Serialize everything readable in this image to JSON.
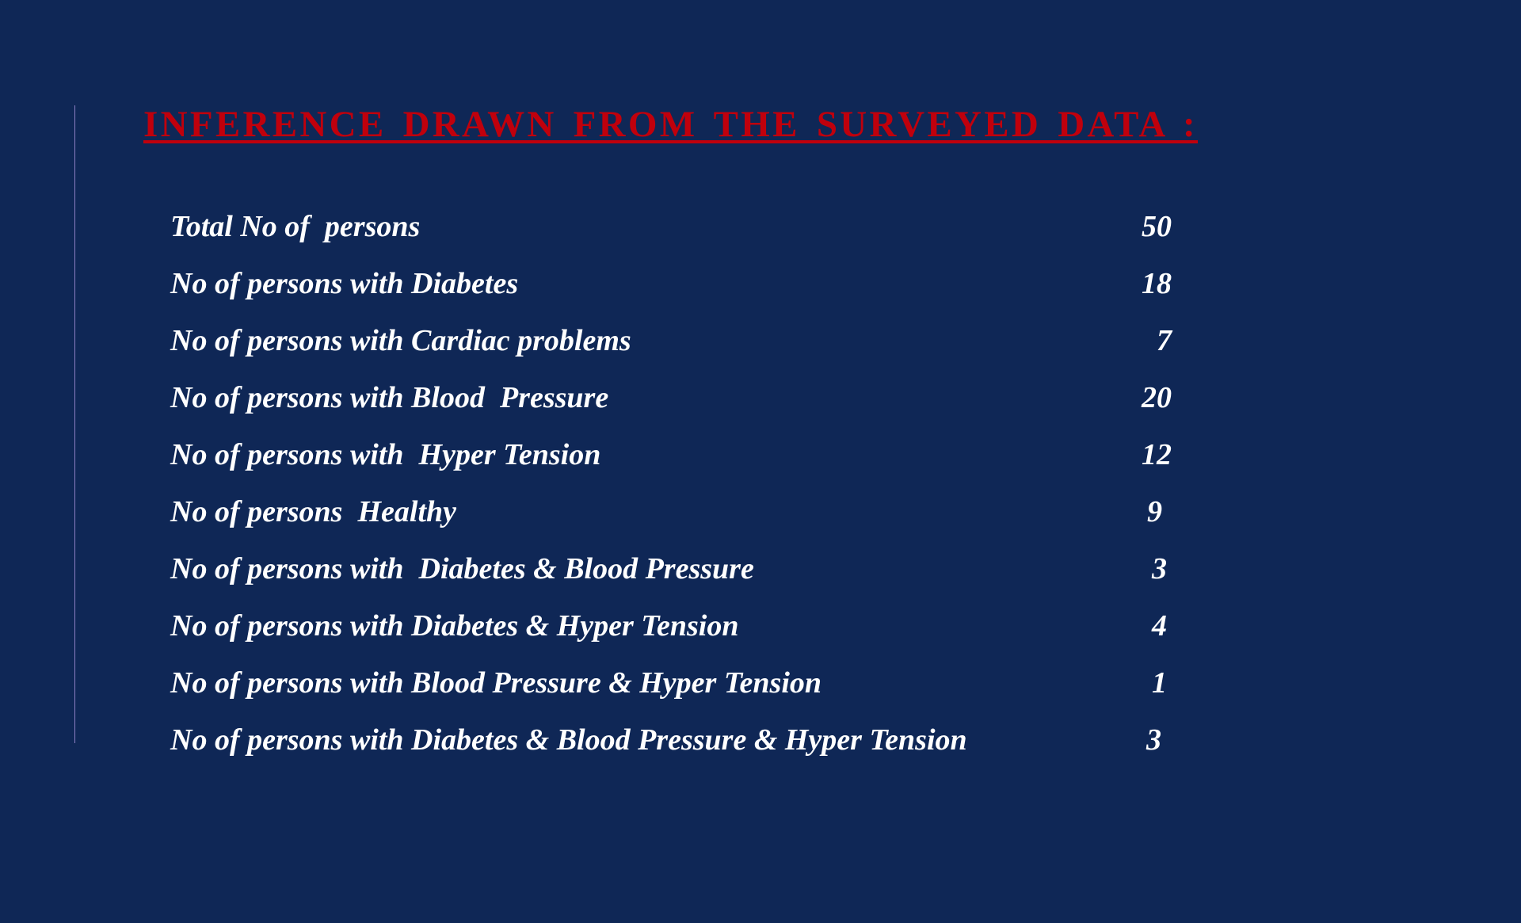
{
  "slide": {
    "title": "INFERENCE  DRAWN  FROM THE SURVEYED  DATA :",
    "title_color": "#c0000c",
    "background_color": "#0f2756",
    "accent_line_color": "#8d80c4"
  },
  "stats": [
    {
      "label": "Total No of  persons",
      "value": "50"
    },
    {
      "label": "No of persons with Diabetes",
      "value": "18"
    },
    {
      "label": "No of persons with Cardiac problems",
      "value": "7"
    },
    {
      "label": "No of persons with Blood  Pressure",
      "value": "20"
    },
    {
      "label": "No of persons with  Hyper Tension",
      "value": "12"
    },
    {
      "label": "No of persons  Healthy",
      "value": "9"
    },
    {
      "label": "No of persons with  Diabetes & Blood Pressure",
      "value": "3"
    },
    {
      "label": "No of persons with Diabetes & Hyper Tension",
      "value": "4"
    },
    {
      "label": "No of persons with Blood Pressure & Hyper Tension",
      "value": "1"
    },
    {
      "label": "No of persons with Diabetes & Blood Pressure & Hyper Tension",
      "value": "3"
    }
  ]
}
